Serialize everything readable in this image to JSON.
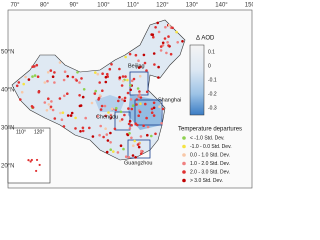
{
  "longitudes": [
    "70°",
    "80°",
    "90°",
    "100°",
    "110°",
    "120°",
    "130°",
    "140°",
    "150°"
  ],
  "latitudes": [
    "50°N",
    "40°N",
    "30°N",
    "20°N"
  ],
  "inset_labels": [
    "110°",
    "120°"
  ],
  "cities": [
    "Beijing",
    "Shanghai",
    "Chengdu",
    "Guangzhou"
  ],
  "aod_legend": {
    "title": "Δ AOD",
    "ticks": [
      "0.1",
      "0",
      "-0.1",
      "-0.2",
      "-0.3"
    ]
  },
  "temperature_legend": {
    "title": "Temperature departures",
    "items": [
      {
        "label": "< -1.0 Std. Dev.",
        "color": "#8fd14f"
      },
      {
        "label": "-1.0 - 0.0 Std. Dev.",
        "color": "#f5e342"
      },
      {
        "label": "0.0 - 1.0 Std. Dev.",
        "color": "#f8c8a8"
      },
      {
        "label": "1.0 - 2.0 Std. Dev.",
        "color": "#f08080"
      },
      {
        "label": "2.0 - 3.0 Std. Dev.",
        "color": "#e03030"
      },
      {
        "label": "> 3.0 Std. Dev.",
        "color": "#c00000"
      }
    ]
  }
}
